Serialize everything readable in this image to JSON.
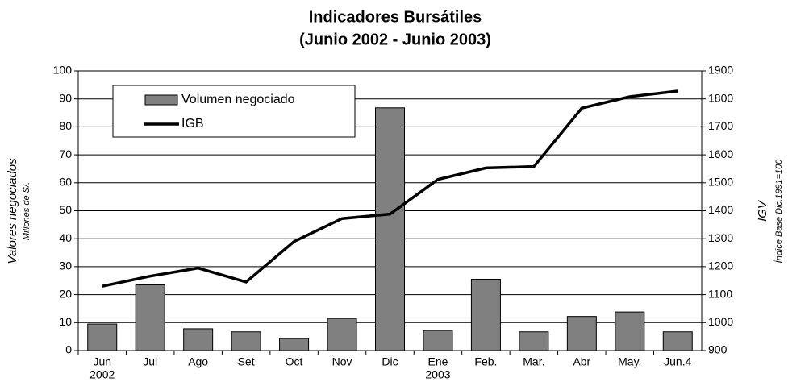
{
  "chart_data": {
    "type": "bar-line",
    "title": "Indicadores Bursátiles",
    "subtitle": "(Junio 2002 - Junio 2003)",
    "y_label": "Valores negociados",
    "y_sublabel": "Millones de S/.",
    "y2_label": "IGV",
    "y2_sublabel": "Índice Base Dic.1991=100",
    "categories": [
      "Jun",
      "Jul",
      "Ago",
      "Set",
      "Oct",
      "Nov",
      "Dic",
      "Ene",
      "Feb.",
      "Mar.",
      "Abr",
      "May.",
      "Jun.4"
    ],
    "x_sublabels": [
      "2002",
      null,
      null,
      null,
      null,
      null,
      null,
      "2003",
      null,
      null,
      null,
      null,
      null
    ],
    "series": [
      {
        "name": "Volumen negociado",
        "type": "bar",
        "color": "#808080",
        "values": [
          9.5,
          23.5,
          7.8,
          6.7,
          4.3,
          11.5,
          86.8,
          7.2,
          25.5,
          6.7,
          12.2,
          13.8,
          6.7
        ]
      },
      {
        "name": "IGB",
        "type": "line",
        "color": "#000000",
        "axis": "y2",
        "values": [
          1130,
          1166,
          1195,
          1145,
          1290,
          1372,
          1388,
          1512,
          1553,
          1558,
          1767,
          1808,
          1828
        ]
      }
    ],
    "ylim": [
      0,
      100
    ],
    "yticks": [
      0,
      10,
      20,
      30,
      40,
      50,
      60,
      70,
      80,
      90,
      100
    ],
    "y2lim": [
      900,
      1900
    ],
    "y2ticks": [
      900,
      1000,
      1100,
      1200,
      1300,
      1400,
      1500,
      1600,
      1700,
      1800,
      1900
    ],
    "grid": true
  }
}
